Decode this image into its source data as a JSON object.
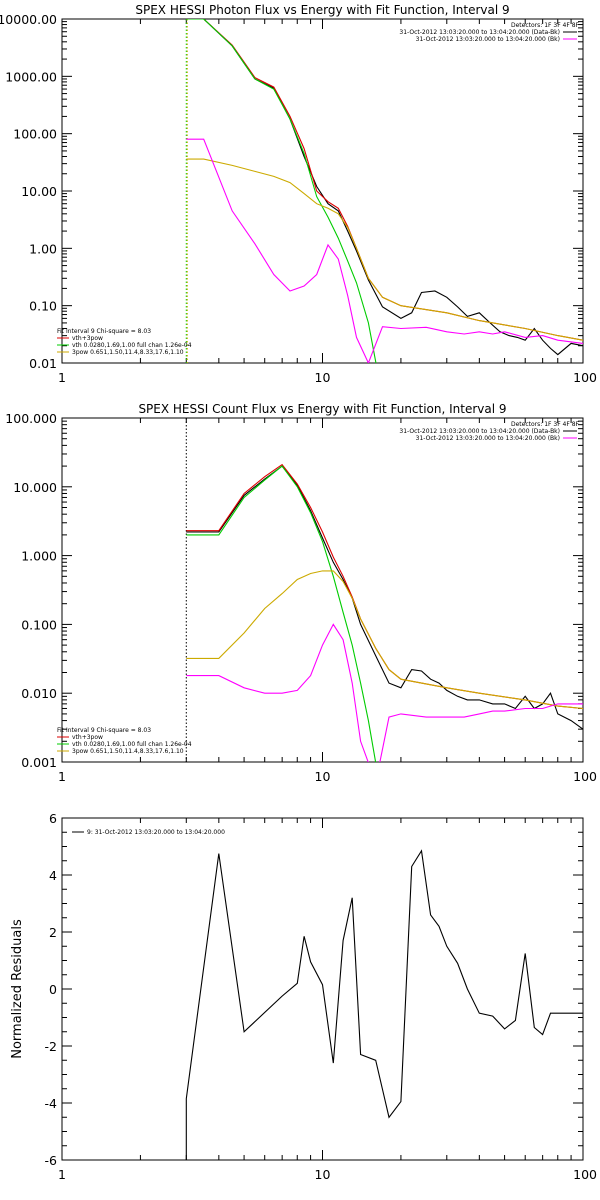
{
  "chart_data": [
    {
      "id": "photon",
      "type": "line",
      "title": "SPEX HESSI Photon Flux vs Energy with Fit Function, Interval 9",
      "xlabel": "",
      "ylabel": "",
      "xscale": "log",
      "yscale": "log",
      "xlim": [
        1,
        100
      ],
      "ylim": [
        0.01,
        10000
      ],
      "xticks": [
        {
          "v": 1,
          "label": "1"
        },
        {
          "v": 10,
          "label": "10"
        },
        {
          "v": 100,
          "label": "100"
        }
      ],
      "yticks": [
        {
          "v": 0.01,
          "label": "0.01"
        },
        {
          "v": 0.1,
          "label": "0.10"
        },
        {
          "v": 1,
          "label": "1.00"
        },
        {
          "v": 10,
          "label": "10.00"
        },
        {
          "v": 100,
          "label": "100.00"
        },
        {
          "v": 1000,
          "label": "1000.00"
        },
        {
          "v": 10000,
          "label": "10000.00"
        }
      ],
      "vline": {
        "x": 3,
        "colors": [
          "#00cc00",
          "#ccaa00"
        ]
      },
      "legend_top": [
        {
          "text": "Detectors: 1F 3F 4F 8F",
          "color": ""
        },
        {
          "text": "31-Oct-2012 13:03:20.000 to 13:04:20.000 (Data-Bk)",
          "color": "#000000"
        },
        {
          "text": "31-Oct-2012 13:03:20.000 to 13:04:20.000 (Bk)",
          "color": "#ff00ff"
        }
      ],
      "legend_bottom": [
        {
          "text": "Fit Interval 9   Chi-square = 8.03",
          "color": ""
        },
        {
          "text": "vth+3pow",
          "color": "#dd0000"
        },
        {
          "text": "vth 0.0280,1.69,1.00  full chan 1.26e-04",
          "color": "#00cc00"
        },
        {
          "text": "3pow 0.651,1.50,11.4,8.33,17.6,1.10",
          "color": "#ccaa00"
        }
      ],
      "series": [
        {
          "name": "Data-Bk",
          "color": "#000000",
          "x": [
            3,
            3.5,
            4.5,
            5.5,
            6.5,
            7.5,
            8.5,
            9.5,
            10.5,
            11.5,
            12.5,
            13.5,
            15,
            17,
            20,
            22,
            24,
            27,
            30,
            33,
            36,
            40,
            44,
            48,
            52,
            56,
            60,
            65,
            70,
            75,
            80,
            90,
            100
          ],
          "y": [
            10000,
            10000,
            3400,
            900,
            620,
            180,
            40,
            12,
            6,
            4.5,
            2,
            0.9,
            0.28,
            0.095,
            0.06,
            0.075,
            0.17,
            0.18,
            0.14,
            0.095,
            0.065,
            0.075,
            0.05,
            0.035,
            0.03,
            0.028,
            0.025,
            0.04,
            0.025,
            0.018,
            0.014,
            0.022,
            0.02
          ]
        },
        {
          "name": "vth+3pow",
          "color": "#dd0000",
          "x": [
            3,
            3.5,
            4.5,
            5.5,
            6.5,
            7.5,
            8.5,
            9.5,
            10.5,
            11.5,
            12.5,
            13.5,
            15,
            17,
            20,
            30,
            40,
            60,
            80,
            100
          ],
          "y": [
            10000,
            10000,
            3500,
            950,
            650,
            200,
            55,
            10,
            6.5,
            5,
            2.4,
            1,
            0.3,
            0.14,
            0.1,
            0.075,
            0.055,
            0.04,
            0.03,
            0.025
          ]
        },
        {
          "name": "vth",
          "color": "#00cc00",
          "x": [
            3,
            3.5,
            4.5,
            5.5,
            6.5,
            7.5,
            8.5,
            9.5,
            10.5,
            11.5,
            12.5,
            13.5,
            15,
            16.5
          ],
          "y": [
            10000,
            10000,
            3400,
            900,
            600,
            180,
            45,
            8,
            3.5,
            1.5,
            0.6,
            0.25,
            0.05,
            0.005
          ]
        },
        {
          "name": "3pow",
          "color": "#ccaa00",
          "x": [
            3,
            3.5,
            4.5,
            5.5,
            6.5,
            7.5,
            8.5,
            9.5,
            10.5,
            11.5,
            12.5,
            13.5,
            15,
            17,
            20,
            30,
            40,
            60,
            80,
            100
          ],
          "y": [
            36,
            36,
            28,
            22,
            18,
            14,
            9,
            6,
            5,
            4,
            2.3,
            1,
            0.3,
            0.14,
            0.1,
            0.075,
            0.055,
            0.04,
            0.03,
            0.025
          ]
        },
        {
          "name": "Bk",
          "color": "#ff00ff",
          "x": [
            3,
            3.5,
            4.5,
            5.5,
            6.5,
            7.5,
            8.5,
            9.5,
            10.5,
            11.5,
            12.5,
            13.5,
            15,
            17,
            20,
            25,
            30,
            35,
            40,
            45,
            50,
            60,
            70,
            80,
            100
          ],
          "y": [
            80,
            80,
            4.5,
            1.2,
            0.35,
            0.18,
            0.22,
            0.35,
            1.15,
            0.65,
            0.15,
            0.028,
            0.01,
            0.043,
            0.04,
            0.042,
            0.035,
            0.032,
            0.035,
            0.032,
            0.035,
            0.028,
            0.03,
            0.025,
            0.022
          ]
        }
      ]
    },
    {
      "id": "count",
      "type": "line",
      "title": "SPEX HESSI Count Flux vs Energy with Fit Function, Interval 9",
      "xlabel": "",
      "ylabel": "",
      "xscale": "log",
      "yscale": "log",
      "xlim": [
        1,
        100
      ],
      "ylim": [
        0.001,
        100
      ],
      "xticks": [
        {
          "v": 1,
          "label": "1"
        },
        {
          "v": 10,
          "label": "10"
        },
        {
          "v": 100,
          "label": "100"
        }
      ],
      "yticks": [
        {
          "v": 0.001,
          "label": "0.001"
        },
        {
          "v": 0.01,
          "label": "0.010"
        },
        {
          "v": 0.1,
          "label": "0.100"
        },
        {
          "v": 1,
          "label": "1.000"
        },
        {
          "v": 10,
          "label": "10.000"
        },
        {
          "v": 100,
          "label": "100.000"
        }
      ],
      "vline": {
        "x": 3,
        "colors": [
          "#000000"
        ]
      },
      "legend_top": [
        {
          "text": "Detectors: 1F 3F 4F 8F",
          "color": ""
        },
        {
          "text": "31-Oct-2012 13:03:20.000 to 13:04:20.000 (Data-Bk)",
          "color": "#000000"
        },
        {
          "text": "31-Oct-2012 13:03:20.000 to 13:04:20.000 (Bk)",
          "color": "#ff00ff"
        }
      ],
      "legend_bottom": [
        {
          "text": "Fit Interval 9   Chi-square = 8.03",
          "color": ""
        },
        {
          "text": "vth+3pow",
          "color": "#dd0000"
        },
        {
          "text": "vth 0.0280,1.69,1.00  full chan 1.26e-04",
          "color": "#00cc00"
        },
        {
          "text": "3pow 0.651,1.50,11.4,8.33,17.6,1.10",
          "color": "#ccaa00"
        }
      ],
      "series": [
        {
          "name": "Data-Bk",
          "color": "#000000",
          "x": [
            3,
            4,
            5,
            6,
            7,
            8,
            9,
            10,
            11,
            12,
            13,
            14,
            16,
            18,
            20,
            22,
            24,
            26,
            28,
            30,
            33,
            36,
            40,
            45,
            50,
            55,
            60,
            65,
            70,
            75,
            80,
            90,
            100
          ],
          "y": [
            2.2,
            2.2,
            7.5,
            13,
            20,
            10.5,
            4.5,
            1.8,
            0.8,
            0.45,
            0.24,
            0.1,
            0.035,
            0.014,
            0.012,
            0.022,
            0.021,
            0.016,
            0.014,
            0.011,
            0.009,
            0.008,
            0.008,
            0.007,
            0.007,
            0.006,
            0.009,
            0.006,
            0.007,
            0.01,
            0.005,
            0.004,
            0.003
          ]
        },
        {
          "name": "vth+3pow",
          "color": "#dd0000",
          "x": [
            3,
            4,
            5,
            6,
            7,
            8,
            9,
            10,
            11,
            12,
            13,
            14,
            16,
            18,
            20,
            30,
            40,
            60,
            80,
            100
          ],
          "y": [
            2.3,
            2.3,
            8,
            14,
            21,
            11,
            5,
            2.2,
            0.95,
            0.5,
            0.25,
            0.12,
            0.045,
            0.022,
            0.016,
            0.012,
            0.01,
            0.008,
            0.0065,
            0.006
          ]
        },
        {
          "name": "vth",
          "color": "#00cc00",
          "x": [
            3,
            4,
            5,
            6,
            7,
            8,
            9,
            10,
            11,
            12,
            13,
            14,
            15,
            16.5
          ],
          "y": [
            2,
            2,
            7,
            12.5,
            20,
            10,
            4.2,
            1.6,
            0.5,
            0.15,
            0.05,
            0.014,
            0.004,
            0.0005
          ]
        },
        {
          "name": "3pow",
          "color": "#ccaa00",
          "x": [
            3,
            4,
            5,
            6,
            7,
            8,
            9,
            10,
            11,
            12,
            13,
            14,
            16,
            18,
            20,
            30,
            40,
            60,
            80,
            100
          ],
          "y": [
            0.032,
            0.032,
            0.075,
            0.17,
            0.28,
            0.45,
            0.55,
            0.6,
            0.6,
            0.42,
            0.24,
            0.12,
            0.045,
            0.022,
            0.016,
            0.012,
            0.01,
            0.008,
            0.0065,
            0.006
          ]
        },
        {
          "name": "Bk",
          "color": "#ff00ff",
          "x": [
            3,
            4,
            5,
            6,
            7,
            8,
            9,
            10,
            11,
            12,
            13,
            14,
            16,
            18,
            20,
            25,
            30,
            35,
            40,
            45,
            50,
            60,
            70,
            80,
            100
          ],
          "y": [
            0.018,
            0.018,
            0.012,
            0.01,
            0.01,
            0.011,
            0.018,
            0.05,
            0.1,
            0.06,
            0.014,
            0.002,
            0.0005,
            0.0045,
            0.005,
            0.0045,
            0.0045,
            0.0045,
            0.005,
            0.0055,
            0.0055,
            0.006,
            0.006,
            0.007,
            0.007
          ]
        }
      ]
    },
    {
      "id": "residuals",
      "type": "line",
      "title": "",
      "xlabel": "",
      "ylabel": "Normalized Residuals",
      "xscale": "log",
      "yscale": "linear",
      "xlim": [
        1,
        100
      ],
      "ylim": [
        -6,
        6
      ],
      "xticks": [
        {
          "v": 1,
          "label": "1"
        },
        {
          "v": 10,
          "label": "10"
        },
        {
          "v": 100,
          "label": "100"
        }
      ],
      "yticks": [
        {
          "v": -6,
          "label": "-6"
        },
        {
          "v": -4,
          "label": "-4"
        },
        {
          "v": -2,
          "label": "-2"
        },
        {
          "v": 0,
          "label": "0"
        },
        {
          "v": 2,
          "label": "2"
        },
        {
          "v": 4,
          "label": "4"
        },
        {
          "v": 6,
          "label": "6"
        }
      ],
      "legend_top": [
        {
          "text": "9: 31-Oct-2012 13:03:20.000 to 13:04:20.000",
          "color": "#000000"
        }
      ],
      "series": [
        {
          "name": "9: 31-Oct-2012 13:03:20.000 to 13:04:20.000",
          "color": "#000000",
          "x": [
            3,
            3,
            4,
            5,
            7,
            8,
            8.5,
            9,
            10,
            11,
            12,
            13,
            14,
            16,
            18,
            20,
            22,
            24,
            26,
            28,
            30,
            33,
            36,
            40,
            45,
            50,
            55,
            60,
            65,
            70,
            75,
            80,
            90,
            100
          ],
          "y": [
            -6,
            -3.85,
            4.75,
            -1.5,
            -0.25,
            0.2,
            1.85,
            0.95,
            0.15,
            -2.6,
            1.7,
            3.2,
            -2.3,
            -2.5,
            -4.5,
            -3.95,
            4.3,
            4.85,
            2.6,
            2.2,
            1.5,
            0.9,
            0.0,
            -0.85,
            -0.95,
            -1.4,
            -1.1,
            1.25,
            -1.35,
            -1.6,
            -0.85,
            -0.85,
            -0.85,
            -0.85
          ]
        }
      ]
    }
  ]
}
